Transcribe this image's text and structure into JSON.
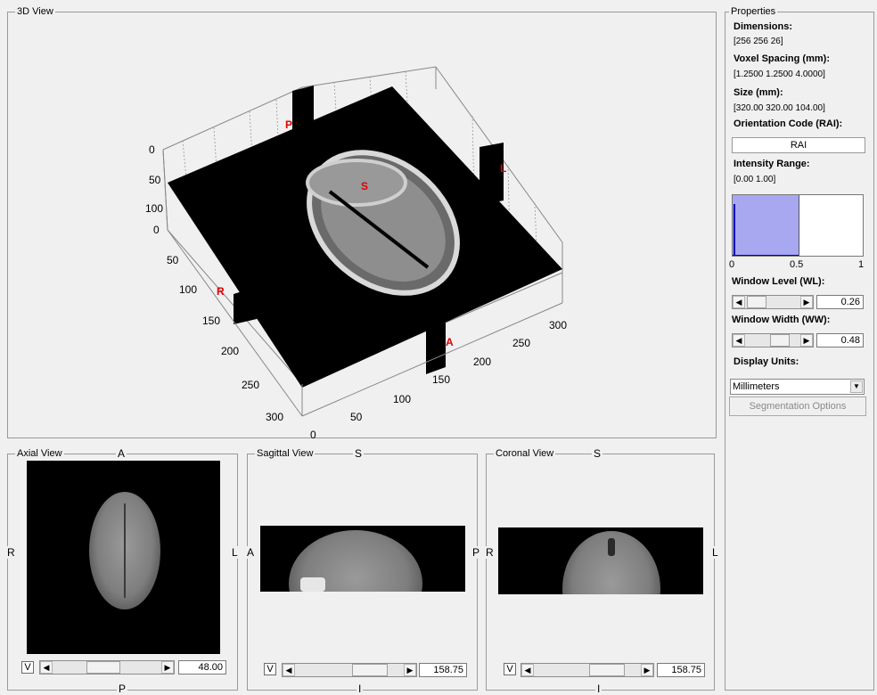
{
  "views": {
    "view3d": {
      "title": "3D View",
      "z_ticks": [
        "0",
        "50",
        "100"
      ],
      "y_ticks": [
        "0",
        "50",
        "100",
        "150",
        "200",
        "250",
        "300"
      ],
      "x_ticks": [
        "0",
        "50",
        "100",
        "150",
        "200",
        "250",
        "300"
      ],
      "markers": {
        "p": "P",
        "l": "L",
        "s": "S",
        "r": "R",
        "a": "A"
      }
    },
    "axial": {
      "title": "Axial View",
      "top": "A",
      "bottom": "P",
      "left": "R",
      "right": "L",
      "checkbox": "V",
      "value": "48.00"
    },
    "sagittal": {
      "title": "Sagittal View",
      "top": "S",
      "bottom": "I",
      "left": "A",
      "right": "P",
      "checkbox": "V",
      "value": "158.75"
    },
    "coronal": {
      "title": "Coronal View",
      "top": "S",
      "bottom": "I",
      "left": "R",
      "right": "L",
      "checkbox": "V",
      "value": "158.75"
    }
  },
  "properties": {
    "title": "Properties",
    "dimensions_label": "Dimensions:",
    "dimensions_value": "[256 256 26]",
    "voxel_label": "Voxel Spacing (mm):",
    "voxel_value": "[1.2500 1.2500 4.0000]",
    "size_label": "Size (mm):",
    "size_value": "[320.00 320.00 104.00]",
    "orientation_label": "Orientation Code (RAI):",
    "orientation_value": "RAI",
    "intensity_label": "Intensity Range:",
    "intensity_value": "[0.00 1.00]",
    "histogram_ticks": [
      "0",
      "0.5",
      "1"
    ],
    "window_level_label": "Window Level (WL):",
    "window_level_value": "0.26",
    "window_width_label": "Window Width (WW):",
    "window_width_value": "0.48",
    "display_units_label": "Display Units:",
    "display_units_value": "Millimeters",
    "segmentation_button": "Segmentation Options"
  }
}
